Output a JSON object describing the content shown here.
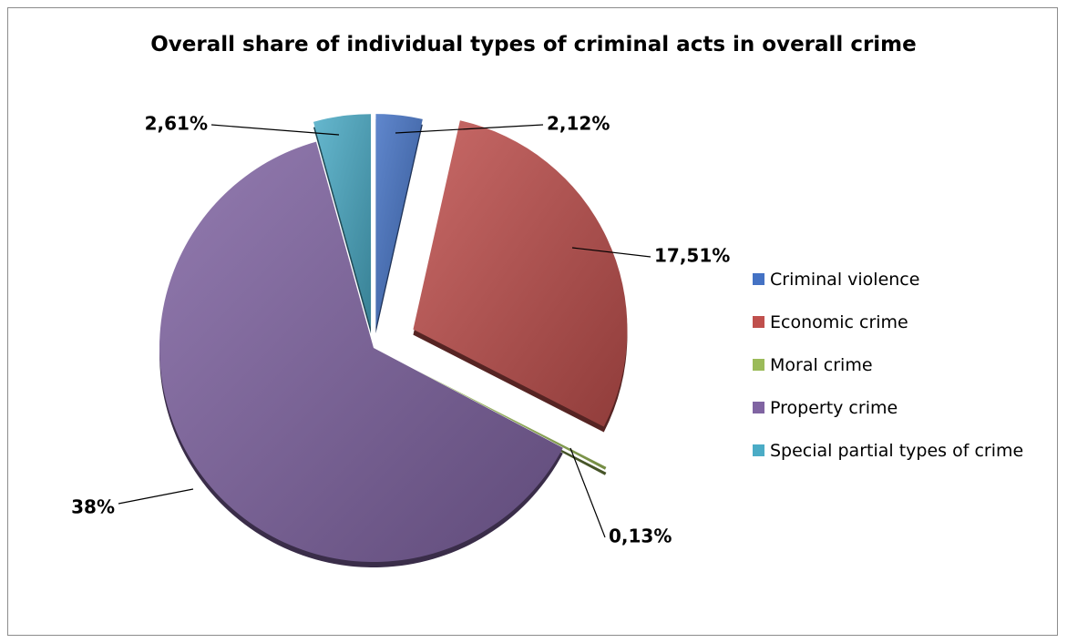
{
  "chart_data": {
    "type": "pie",
    "title": "Overall share of individual types of criminal acts in overall crime",
    "categories": [
      "Criminal violence",
      "Economic crime",
      "Moral crime",
      "Property crime",
      "Special partial types of crime"
    ],
    "values": [
      2.12,
      17.51,
      0.13,
      38,
      2.61
    ],
    "data_labels": [
      "2,12%",
      "17,51%",
      "0,13%",
      "38%",
      "2,61%"
    ],
    "colors": [
      "#4472c4",
      "#c0504d",
      "#9bbb59",
      "#8064a2",
      "#4bacc6"
    ],
    "legend_position": "right",
    "exploded": true
  }
}
